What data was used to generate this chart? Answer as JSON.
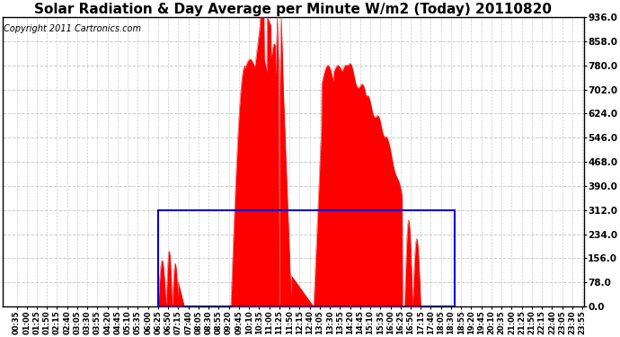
{
  "title": "Solar Radiation & Day Average per Minute W/m2 (Today) 20110820",
  "copyright": "Copyright 2011 Cartronics.com",
  "ymin": 0.0,
  "ymax": 936.0,
  "yticks": [
    0.0,
    78.0,
    156.0,
    234.0,
    312.0,
    390.0,
    468.0,
    546.0,
    624.0,
    702.0,
    780.0,
    858.0,
    936.0
  ],
  "background_color": "#ffffff",
  "plot_bg_color": "#ffffff",
  "bar_color": "#ff0000",
  "blue_rect_color": "#0000cc",
  "grid_color": "#cccccc",
  "title_fontsize": 11,
  "copyright_fontsize": 7
}
